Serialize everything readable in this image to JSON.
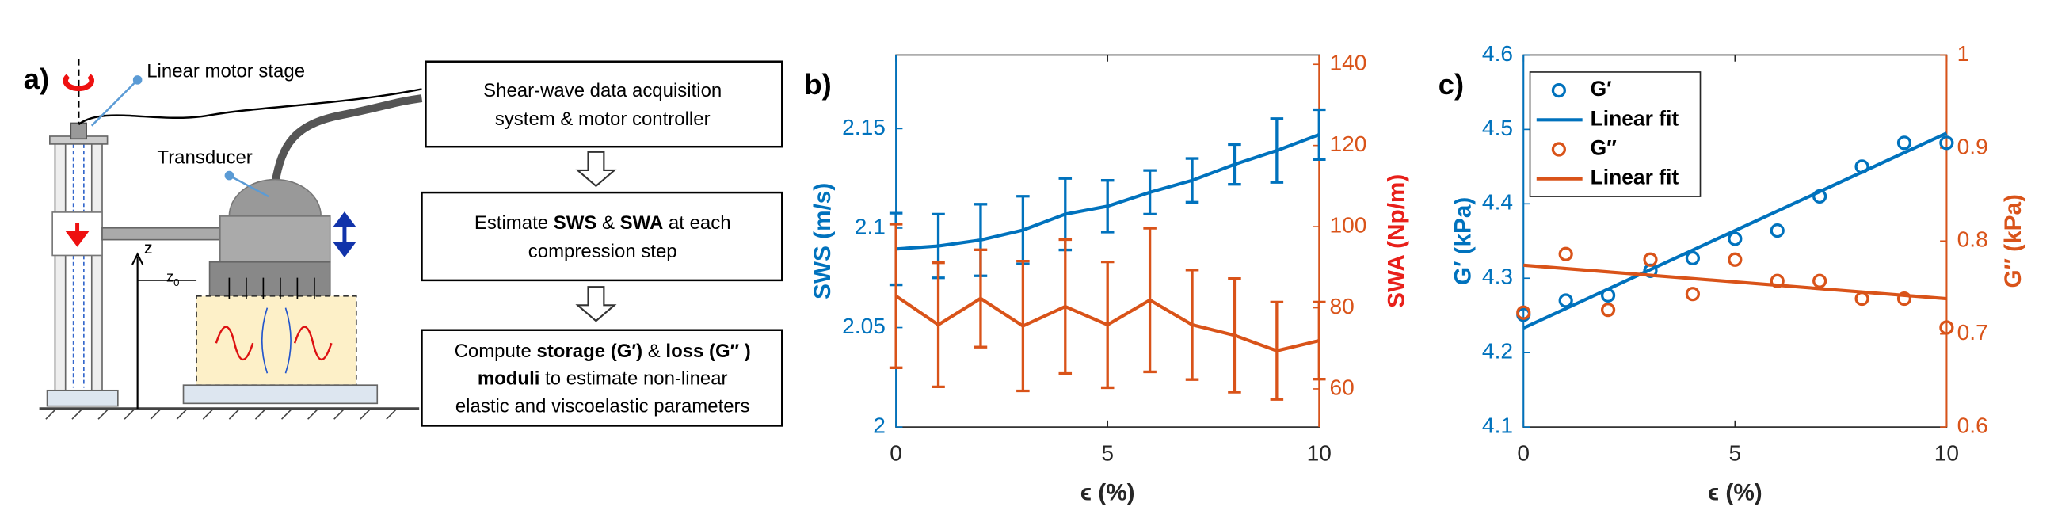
{
  "diagram": {
    "label": "a)",
    "motor_label": "Linear motor stage",
    "transducer_label": "Transducer",
    "z_label": "z",
    "z0_label": "z",
    "z0_sub": "0",
    "boxes": [
      {
        "lines": [
          [
            {
              "t": "Shear-wave data acquisition",
              "b": false
            }
          ],
          [
            {
              "t": "system & motor controller",
              "b": false
            }
          ]
        ]
      },
      {
        "lines": [
          [
            {
              "t": "Estimate ",
              "b": false
            },
            {
              "t": "SWS",
              "b": true
            },
            {
              "t": " & ",
              "b": false
            },
            {
              "t": "SWA",
              "b": true
            },
            {
              "t": " at each",
              "b": false
            }
          ],
          [
            {
              "t": "compression step",
              "b": false
            }
          ]
        ]
      },
      {
        "lines": [
          [
            {
              "t": "Compute ",
              "b": false
            },
            {
              "t": "storage (G′)",
              "b": true
            },
            {
              "t": " & ",
              "b": false
            },
            {
              "t": "loss (G″ )",
              "b": true
            }
          ],
          [
            {
              "t": "moduli",
              "b": true
            },
            {
              "t": " to estimate non-linear",
              "b": false
            }
          ],
          [
            {
              "t": "elastic and viscoelastic parameters",
              "b": false
            }
          ]
        ]
      }
    ]
  },
  "chart_data": [
    {
      "type": "line",
      "label": "b)",
      "xlabel": "ϵ (%)",
      "ylabel": "SWS (m/s)",
      "y2label": "SWA (Np/m)",
      "ycolor": "#0072bd",
      "y2color": "#d95319",
      "ylabel_color": "#0072bd",
      "y2label_color": "#e8201a",
      "x": [
        0,
        1,
        2,
        3,
        4,
        5,
        6,
        7,
        8,
        9,
        10
      ],
      "xlim": [
        0,
        10
      ],
      "xticks": [
        0,
        5,
        10
      ],
      "ylim": [
        2,
        2.187
      ],
      "yticks": [
        2,
        2.05,
        2.1,
        2.15
      ],
      "y2lim": [
        50.6,
        142.3
      ],
      "y2ticks": [
        60,
        80,
        100,
        120,
        140
      ],
      "series": [
        {
          "color": "#0072bd",
          "values": [
            2.0895,
            2.091,
            2.094,
            2.099,
            2.107,
            2.111,
            2.118,
            2.124,
            2.132,
            2.139,
            2.147
          ],
          "errors": [
            0.018,
            0.016,
            0.018,
            0.017,
            0.018,
            0.013,
            0.011,
            0.011,
            0.01,
            0.016,
            0.0125
          ]
        },
        {
          "color": "#d95319",
          "axis": "y2",
          "values": [
            82.9,
            75.8,
            82.3,
            75.5,
            80.3,
            75.8,
            81.9,
            75.8,
            73.2,
            69.4,
            71.9
          ],
          "errors": [
            17.7,
            15.3,
            12,
            16,
            16.5,
            15.5,
            17.7,
            13.5,
            14,
            12,
            9.5
          ]
        }
      ]
    },
    {
      "type": "line",
      "label": "c)",
      "xlabel": "ϵ (%)",
      "ylabel": "G′ (kPa)",
      "y2label": "G″ (kPa)",
      "ycolor": "#0072bd",
      "y2color": "#d95319",
      "ylabel_color": "#0072bd",
      "y2label_color": "#d95319",
      "x": [
        0,
        1,
        2,
        3,
        4,
        5,
        6,
        7,
        8,
        9,
        10
      ],
      "xlim": [
        0,
        10
      ],
      "xticks": [
        0,
        5,
        10
      ],
      "ylim": [
        4.1,
        4.6
      ],
      "yticks": [
        4.1,
        4.2,
        4.3,
        4.4,
        4.5,
        4.6
      ],
      "y2lim": [
        0.6,
        1
      ],
      "y2ticks": [
        0.6,
        0.7,
        0.8,
        0.9,
        1
      ],
      "legend": "upper left",
      "series": [
        {
          "name": "G′",
          "color": "#0072bd",
          "marker": "circle",
          "values": [
            4.251,
            4.27,
            4.277,
            4.31,
            4.327,
            4.353,
            4.364,
            4.41,
            4.45,
            4.482,
            4.482
          ]
        },
        {
          "name": "Linear fit",
          "color": "#0072bd",
          "x": [
            0,
            10
          ],
          "values": [
            4.233,
            4.495
          ]
        },
        {
          "name": "G″",
          "color": "#d95319",
          "marker": "circle",
          "axis": "y2",
          "values": [
            0.723,
            0.786,
            0.726,
            0.78,
            0.743,
            0.78,
            0.757,
            0.757,
            0.738,
            0.738,
            0.707
          ]
        },
        {
          "name": "Linear fit",
          "color": "#d95319",
          "axis": "y2",
          "x": [
            0,
            10
          ],
          "values": [
            0.774,
            0.738
          ]
        }
      ]
    }
  ]
}
